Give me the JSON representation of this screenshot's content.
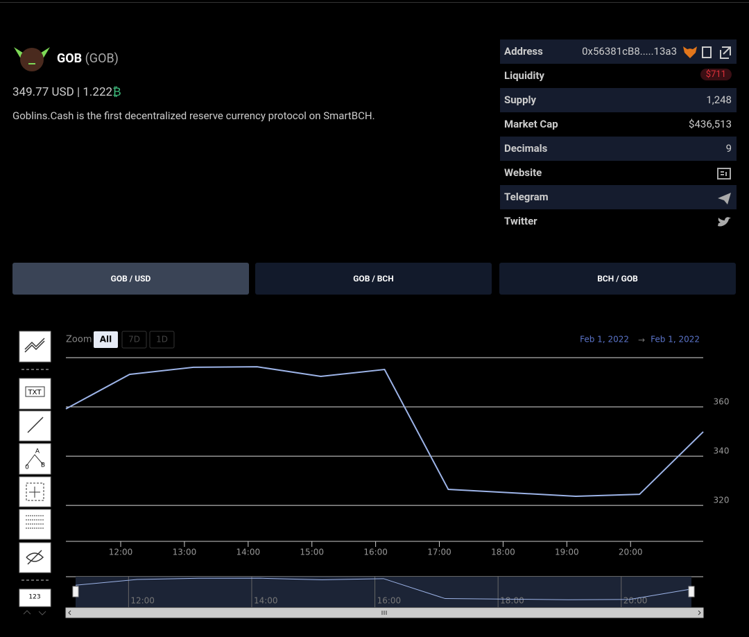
{
  "header": {
    "name": "GOB",
    "symbol": "(GOB)",
    "price_usd": "349.77",
    "usd": "USD",
    "separator": "|",
    "price_bch": "1.222",
    "bch_symbol": "₿",
    "description": "Goblins.Cash is the first decentralized reserve currency protocol on SmartBCH."
  },
  "stats": [
    {
      "label": "Address",
      "value": "0x56381cB8.....13a3"
    },
    {
      "label": "Liquidity",
      "value": "$711"
    },
    {
      "label": "Supply",
      "value": "1,248"
    },
    {
      "label": "Market Cap",
      "value": "$436,513"
    },
    {
      "label": "Decimals",
      "value": "9"
    },
    {
      "label": "Website"
    },
    {
      "label": "Telegram"
    },
    {
      "label": "Twitter"
    }
  ],
  "tabs": [
    "GOB / USD",
    "GOB / BCH",
    "BCH / GOB"
  ],
  "toolbar": {
    "text_tool": "TXT",
    "a": "A",
    "b": "B",
    "zero": "0",
    "numbers": "123"
  },
  "zoom": {
    "label": "Zoom",
    "buttons": [
      "All",
      "7D",
      "1D"
    ],
    "from": "Feb 1, 2022",
    "arrow": "→",
    "to": "Feb 1, 2022"
  },
  "chart_data": {
    "type": "line",
    "x": [
      11.14,
      12.14,
      13.14,
      14.14,
      15.14,
      16.14,
      17.14,
      18.14,
      19.14,
      20.14,
      21.14
    ],
    "series": [
      {
        "name": "GOB / USD",
        "color": "#9db4e8",
        "values": [
          359.2,
          373.2,
          376.1,
          376.3,
          372.4,
          375.2,
          326.5,
          325.1,
          323.7,
          324.5,
          349.9
        ]
      }
    ],
    "xlim": [
      11.14,
      21.14
    ],
    "ylim": [
      305.4,
      380
    ],
    "yticks": [
      320,
      340,
      360
    ],
    "xticks": [
      {
        "value": 12,
        "label": "12:00"
      },
      {
        "value": 13,
        "label": "13:00"
      },
      {
        "value": 14,
        "label": "14:00"
      },
      {
        "value": 15,
        "label": "15:00"
      },
      {
        "value": 16,
        "label": "16:00"
      },
      {
        "value": 17,
        "label": "17:00"
      },
      {
        "value": 18,
        "label": "18:00"
      },
      {
        "value": 19,
        "label": "19:00"
      },
      {
        "value": 20,
        "label": "20:00"
      }
    ],
    "grid": true
  }
}
